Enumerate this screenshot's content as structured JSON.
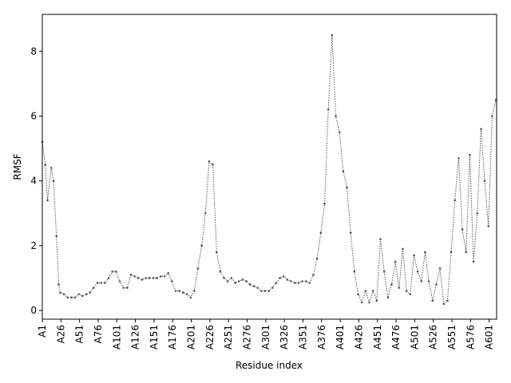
{
  "chart_data": {
    "type": "line",
    "xlabel": "Residue index",
    "ylabel": "RMSF",
    "color": "#555555",
    "x": [
      1,
      5,
      8,
      13,
      16,
      20,
      23,
      25,
      30,
      35,
      40,
      45,
      50,
      55,
      60,
      65,
      70,
      75,
      80,
      85,
      90,
      95,
      100,
      105,
      110,
      115,
      120,
      125,
      130,
      135,
      140,
      145,
      150,
      155,
      160,
      165,
      170,
      175,
      180,
      185,
      190,
      195,
      200,
      205,
      210,
      215,
      220,
      225,
      230,
      235,
      240,
      245,
      250,
      255,
      260,
      265,
      270,
      275,
      280,
      285,
      290,
      295,
      300,
      305,
      310,
      315,
      320,
      325,
      330,
      335,
      340,
      345,
      350,
      355,
      360,
      365,
      370,
      375,
      380,
      385,
      390,
      395,
      400,
      405,
      410,
      415,
      420,
      425,
      430,
      435,
      440,
      445,
      450,
      455,
      460,
      465,
      470,
      475,
      480,
      485,
      490,
      495,
      500,
      505,
      510,
      515,
      520,
      525,
      530,
      535,
      540,
      545,
      550,
      555,
      560,
      565,
      570,
      575,
      580,
      585,
      590,
      595,
      600,
      605,
      610
    ],
    "values": [
      5.2,
      4.5,
      3.4,
      4.4,
      4.0,
      2.3,
      0.8,
      0.55,
      0.5,
      0.4,
      0.4,
      0.4,
      0.5,
      0.45,
      0.5,
      0.55,
      0.7,
      0.85,
      0.85,
      0.85,
      1.0,
      1.2,
      1.2,
      0.9,
      0.7,
      0.7,
      1.1,
      1.05,
      1.0,
      0.95,
      1.0,
      1.0,
      1.0,
      1.0,
      1.05,
      1.05,
      1.15,
      0.9,
      0.6,
      0.6,
      0.55,
      0.5,
      0.4,
      0.6,
      1.3,
      2.0,
      3.0,
      4.6,
      4.5,
      1.8,
      1.2,
      1.0,
      0.9,
      1.0,
      0.85,
      0.9,
      0.95,
      0.9,
      0.8,
      0.75,
      0.7,
      0.6,
      0.6,
      0.6,
      0.7,
      0.85,
      1.0,
      1.05,
      0.95,
      0.9,
      0.85,
      0.85,
      0.9,
      0.9,
      0.85,
      1.1,
      1.6,
      2.4,
      3.3,
      6.2,
      8.5,
      6.0,
      5.5,
      4.3,
      3.8,
      2.4,
      1.2,
      0.5,
      0.25,
      0.6,
      0.25,
      0.6,
      0.3,
      2.2,
      1.2,
      0.4,
      0.8,
      1.5,
      0.7,
      1.9,
      0.6,
      0.5,
      1.7,
      1.2,
      0.9,
      1.8,
      0.9,
      0.3,
      0.8,
      1.3,
      0.2,
      0.3,
      1.8,
      3.4,
      4.7,
      2.5,
      1.8,
      4.8,
      1.5,
      3.0,
      5.6,
      4.0,
      2.6,
      6.0,
      6.5
    ],
    "xlim": [
      1,
      611
    ],
    "ylim": [
      -0.27,
      9.14
    ],
    "xticks": [
      {
        "value": 1,
        "label": "A1"
      },
      {
        "value": 26,
        "label": "A26"
      },
      {
        "value": 51,
        "label": "A51"
      },
      {
        "value": 76,
        "label": "A76"
      },
      {
        "value": 101,
        "label": "A101"
      },
      {
        "value": 126,
        "label": "A126"
      },
      {
        "value": 151,
        "label": "A151"
      },
      {
        "value": 176,
        "label": "A176"
      },
      {
        "value": 201,
        "label": "A201"
      },
      {
        "value": 226,
        "label": "A226"
      },
      {
        "value": 251,
        "label": "A251"
      },
      {
        "value": 276,
        "label": "A276"
      },
      {
        "value": 301,
        "label": "A301"
      },
      {
        "value": 326,
        "label": "A326"
      },
      {
        "value": 351,
        "label": "A351"
      },
      {
        "value": 376,
        "label": "A376"
      },
      {
        "value": 401,
        "label": "A401"
      },
      {
        "value": 426,
        "label": "A426"
      },
      {
        "value": 451,
        "label": "A451"
      },
      {
        "value": 476,
        "label": "A476"
      },
      {
        "value": 501,
        "label": "A501"
      },
      {
        "value": 526,
        "label": "A526"
      },
      {
        "value": 551,
        "label": "A551"
      },
      {
        "value": 576,
        "label": "A576"
      },
      {
        "value": 601,
        "label": "A601"
      }
    ],
    "yticks": [
      0,
      2,
      4,
      6,
      8
    ]
  }
}
